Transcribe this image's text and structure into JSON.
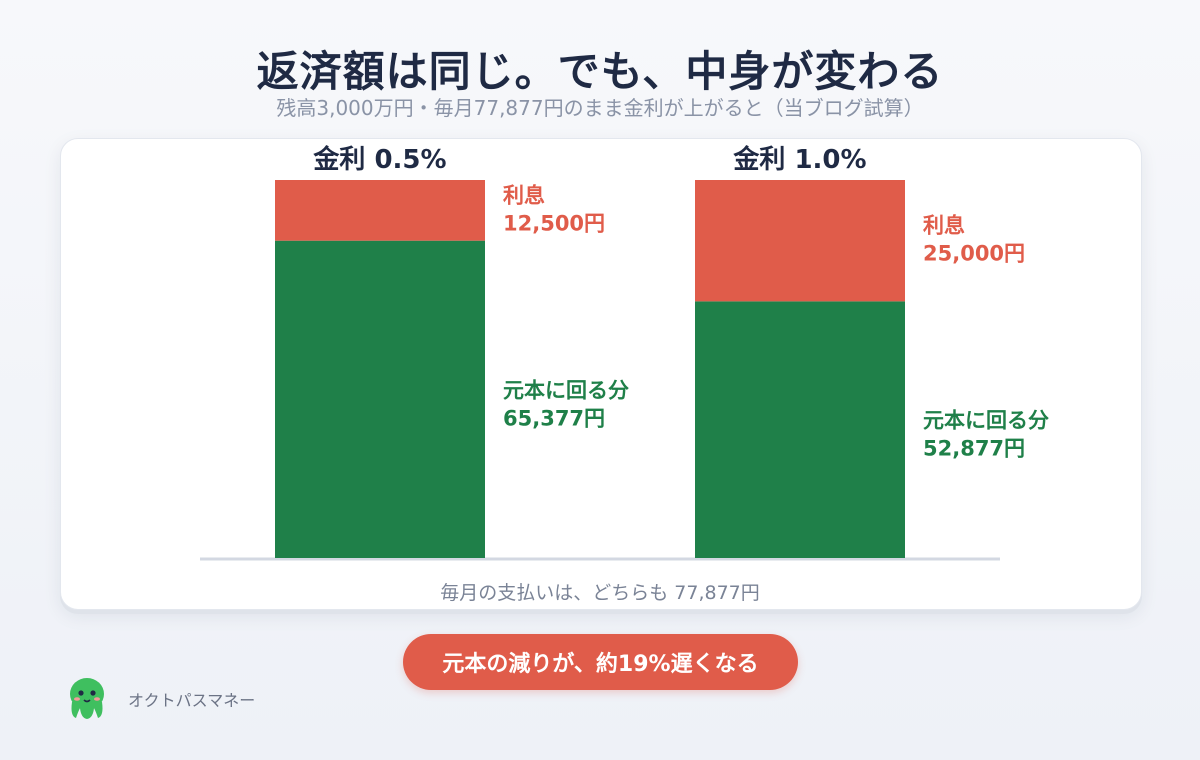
{
  "title": "返済額は同じ。でも、中身が変わる",
  "subtitle": "残高3,000万円・毎月77,877円のまま金利が上がると（当ブログ試算）",
  "chart_data": {
    "type": "bar",
    "stacked": true,
    "categories": [
      "金利 0.5%",
      "金利 1.0%"
    ],
    "series": [
      {
        "name": "元本に回る分",
        "values": [
          65377,
          52877
        ],
        "value_labels": [
          "65,377円",
          "52,877円"
        ],
        "color": "#1f8049"
      },
      {
        "name": "利息",
        "values": [
          12500,
          25000
        ],
        "value_labels": [
          "12,500円",
          "25,000円"
        ],
        "color": "#e05c4a"
      }
    ],
    "total": 77877,
    "ylim": [
      0,
      77877
    ]
  },
  "footer_note": "毎月の支払いは、どちらも 77,877円",
  "callout": "元本の減りが、約19%遅くなる",
  "brand": {
    "name": "オクトパスマネー",
    "icon": "octopus-mascot-icon"
  }
}
